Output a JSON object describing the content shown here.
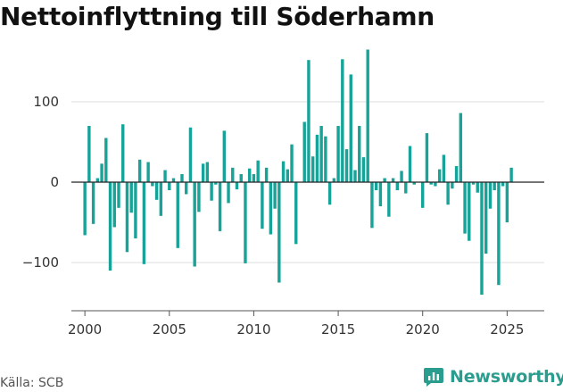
{
  "title": "Nettoinflyttning till Söderhamn",
  "source": "Källa: SCB",
  "brand": {
    "name": "Newsworthy",
    "icon": "newsworthy-logo-icon",
    "color": "#2a9d8f"
  },
  "chart_data": {
    "type": "bar",
    "title": "Nettoinflyttning till Söderhamn",
    "xlabel": "",
    "ylabel": "",
    "bar_color": "#17a398",
    "x_ticks": [
      "2000",
      "2005",
      "2010",
      "2015",
      "2020",
      "2025"
    ],
    "y_ticks": [
      -100,
      0,
      100
    ],
    "y_tick_labels": [
      "−100",
      "0",
      "100"
    ],
    "ylim": [
      -160,
      160
    ],
    "grid": true,
    "legend": "none",
    "periods": "quarterly, 2000 Q1 – 2025 Q3",
    "x": [
      2000.0,
      2000.25,
      2000.5,
      2000.75,
      2001.0,
      2001.25,
      2001.5,
      2001.75,
      2002.0,
      2002.25,
      2002.5,
      2002.75,
      2003.0,
      2003.25,
      2003.5,
      2003.75,
      2004.0,
      2004.25,
      2004.5,
      2004.75,
      2005.0,
      2005.25,
      2005.5,
      2005.75,
      2006.0,
      2006.25,
      2006.5,
      2006.75,
      2007.0,
      2007.25,
      2007.5,
      2007.75,
      2008.0,
      2008.25,
      2008.5,
      2008.75,
      2009.0,
      2009.25,
      2009.5,
      2009.75,
      2010.0,
      2010.25,
      2010.5,
      2010.75,
      2011.0,
      2011.25,
      2011.5,
      2011.75,
      2012.0,
      2012.25,
      2012.5,
      2012.75,
      2013.0,
      2013.25,
      2013.5,
      2013.75,
      2014.0,
      2014.25,
      2014.5,
      2014.75,
      2015.0,
      2015.25,
      2015.5,
      2015.75,
      2016.0,
      2016.25,
      2016.5,
      2016.75,
      2017.0,
      2017.25,
      2017.5,
      2017.75,
      2018.0,
      2018.25,
      2018.5,
      2018.75,
      2019.0,
      2019.25,
      2019.5,
      2019.75,
      2020.0,
      2020.25,
      2020.5,
      2020.75,
      2021.0,
      2021.25,
      2021.5,
      2021.75,
      2022.0,
      2022.25,
      2022.5,
      2022.75,
      2023.0,
      2023.25,
      2023.5,
      2023.75,
      2024.0,
      2024.25,
      2024.5,
      2024.75,
      2025.0,
      2025.25,
      2025.5
    ],
    "values": [
      -66,
      70,
      -52,
      5,
      23,
      55,
      -110,
      -56,
      -32,
      72,
      -87,
      -38,
      -70,
      28,
      -102,
      25,
      -5,
      -22,
      -42,
      15,
      -10,
      5,
      -82,
      10,
      -15,
      68,
      -105,
      -37,
      23,
      25,
      -23,
      -3,
      -61,
      64,
      -26,
      18,
      -9,
      10,
      -101,
      17,
      10,
      27,
      -58,
      18,
      -65,
      -33,
      -125,
      26,
      16,
      47,
      -77,
      0,
      75,
      152,
      32,
      59,
      70,
      57,
      -28,
      5,
      70,
      153,
      41,
      134,
      15,
      70,
      31,
      165,
      -57,
      -10,
      -30,
      5,
      -43,
      5,
      -10,
      14,
      -14,
      45,
      -3,
      0,
      -32,
      61,
      -3,
      -5,
      16,
      34,
      -28,
      -8,
      20,
      86,
      -64,
      -73,
      -3,
      -13,
      -140,
      -89,
      -33,
      -10,
      -128,
      -5,
      -50,
      18,
      0
    ]
  }
}
